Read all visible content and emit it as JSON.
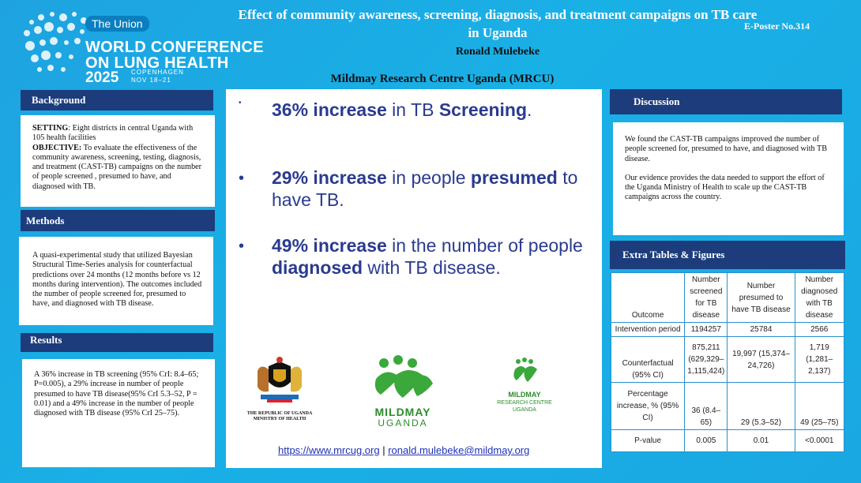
{
  "header": {
    "org_pill": "The Union",
    "conference_line1": "WORLD CONFERENCE",
    "conference_line2": "ON LUNG HEALTH",
    "year": "2025",
    "city": "COPENHAGEN",
    "dates": "NOV 18–21",
    "title": "Effect of community awareness, screening, diagnosis,  and treatment campaigns on TB care in Uganda",
    "eposter": "E-Poster No.314",
    "author": "Ronald Mulebeke",
    "institute": "Mildmay Research Centre Uganda (MRCU)"
  },
  "background": {
    "heading": "Background",
    "setting_label": "SETTING",
    "setting_text": ": Eight districts in central Uganda with 105 health facilities",
    "objective_label": "OBJECTIVE:",
    "objective_text": " To evaluate the effectiveness of the community awareness, screening, testing, diagnosis, and treatment (CAST-TB) campaigns on the number of people screened , presumed to have, and diagnosed with TB."
  },
  "methods": {
    "heading": "Methods",
    "text": "A quasi-experimental study that utilized Bayesian Structural Time-Series analysis for counterfactual predictions over 24 months (12 months before vs 12 months during intervention). The outcomes included the number of people screened for, presumed to have, and diagnosed with TB disease."
  },
  "results": {
    "heading": "Results",
    "text": "A 36% increase in TB screening (95% CrI: 8.4–65; P=0.005), a 29% increase in number of people presumed to have TB disease(95% CrI 5.3–52, P = 0.01) and  a 49% increase in the number of people diagnosed with TB disease (95% CrI 25–75)."
  },
  "highlights": [
    {
      "bullet": "•",
      "b1": "36% increase",
      "t1": " in TB ",
      "b2": "Screening",
      "t2": "."
    },
    {
      "bullet": "•",
      "b1": "29% increase",
      "t1": " in people ",
      "b2": "presumed",
      "t2": " to have TB."
    },
    {
      "bullet": "•",
      "b1": "49% increase",
      "t1": " in the number of people ",
      "b2": "diagnosed",
      "t2": " with TB disease."
    }
  ],
  "logos": {
    "uganda_caption": "THE REPUBLIC OF UGANDA\nMINISTRY OF HEALTH",
    "mildmay_name": "MILDMAY",
    "mildmay_country": "UGANDA",
    "mrc_line1": "MILDMAY",
    "mrc_line2": "RESEARCH CENTRE",
    "mrc_line3": "UGANDA"
  },
  "links": {
    "website": "https://www.mrcug.org",
    "separator": " | ",
    "email": "ronald.mulebeke@mildmay.org"
  },
  "discussion": {
    "heading": "Discussion",
    "p1": "We found the CAST-TB campaigns improved the number of people screened for, presumed to have, and diagnosed with TB disease.",
    "p2": "Our evidence provides the data needed to support the effort of the Uganda Ministry of Health to scale up the CAST-TB campaigns across the country."
  },
  "extra": {
    "heading": "Extra Tables & Figures",
    "columns": [
      "Outcome",
      "Number screened for TB disease",
      "Number presumed to have TB disease",
      "Number diagnosed with TB disease"
    ],
    "rows": [
      [
        "Intervention period",
        "1194257",
        "25784",
        "2566"
      ],
      [
        "Counterfactual (95% CI)",
        "875,211 (629,329–1,115,424)",
        "19,997 (15,374–24,726)",
        "1,719 (1,281–2,137)"
      ],
      [
        "Percentage increase, % (95% CI)",
        "36 (8.4–65)",
        "29 (5.3–52)",
        "49 (25–75)"
      ],
      [
        "P-value",
        "0.005",
        "0.01",
        "<0.0001"
      ]
    ]
  },
  "colors": {
    "background": "#1aa8e2",
    "section_header": "#1c3c7b",
    "highlight_text": "#2a3b8f",
    "mildmay_green": "#3aa83a"
  }
}
